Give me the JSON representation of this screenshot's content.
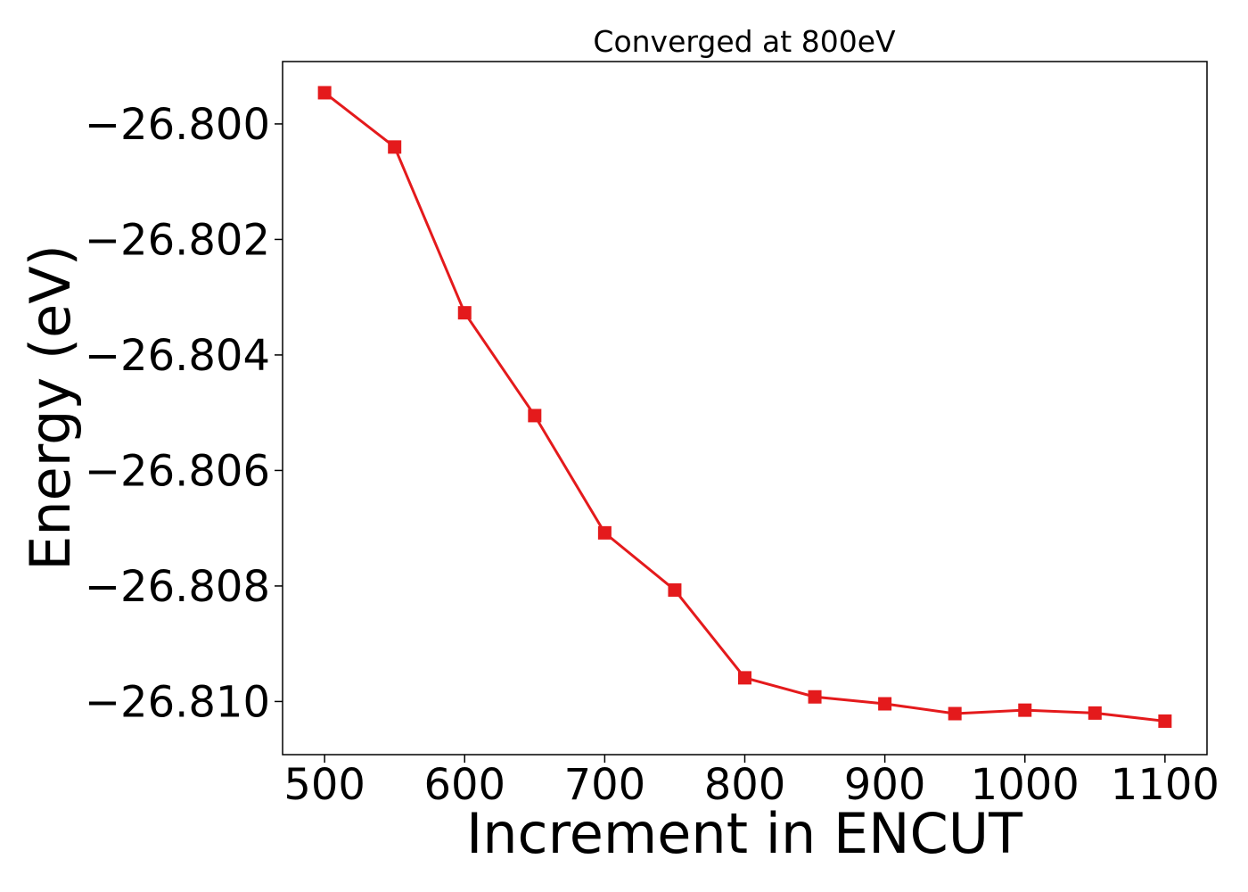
{
  "chart_data": {
    "type": "line",
    "title": "Converged at 800eV",
    "xlabel": "Increment in ENCUT",
    "ylabel": "Energy (eV)",
    "x": [
      500,
      550,
      600,
      650,
      700,
      750,
      800,
      850,
      900,
      950,
      1000,
      1050,
      1100
    ],
    "series": [
      {
        "values": [
          -26.79946,
          -26.8004,
          -26.80327,
          -26.80505,
          -26.80708,
          -26.80807,
          -26.80959,
          -26.80992,
          -26.81004,
          -26.81021,
          -26.81015,
          -26.8102,
          -26.81034
        ],
        "color": "#e41a1c",
        "marker": "square"
      }
    ],
    "xticks": [
      500,
      600,
      700,
      800,
      900,
      1000,
      1100
    ],
    "xtick_labels": [
      "500",
      "600",
      "700",
      "800",
      "900",
      "1000",
      "1100"
    ],
    "yticks": [
      -26.8,
      -26.802,
      -26.804,
      -26.806,
      -26.808,
      -26.81
    ],
    "ytick_labels": [
      "−26.800",
      "−26.802",
      "−26.804",
      "−26.806",
      "−26.808",
      "−26.810"
    ],
    "xlim": [
      470,
      1130
    ],
    "ylim": [
      -26.81092,
      -26.79892
    ],
    "grid": false,
    "legend": "none"
  }
}
